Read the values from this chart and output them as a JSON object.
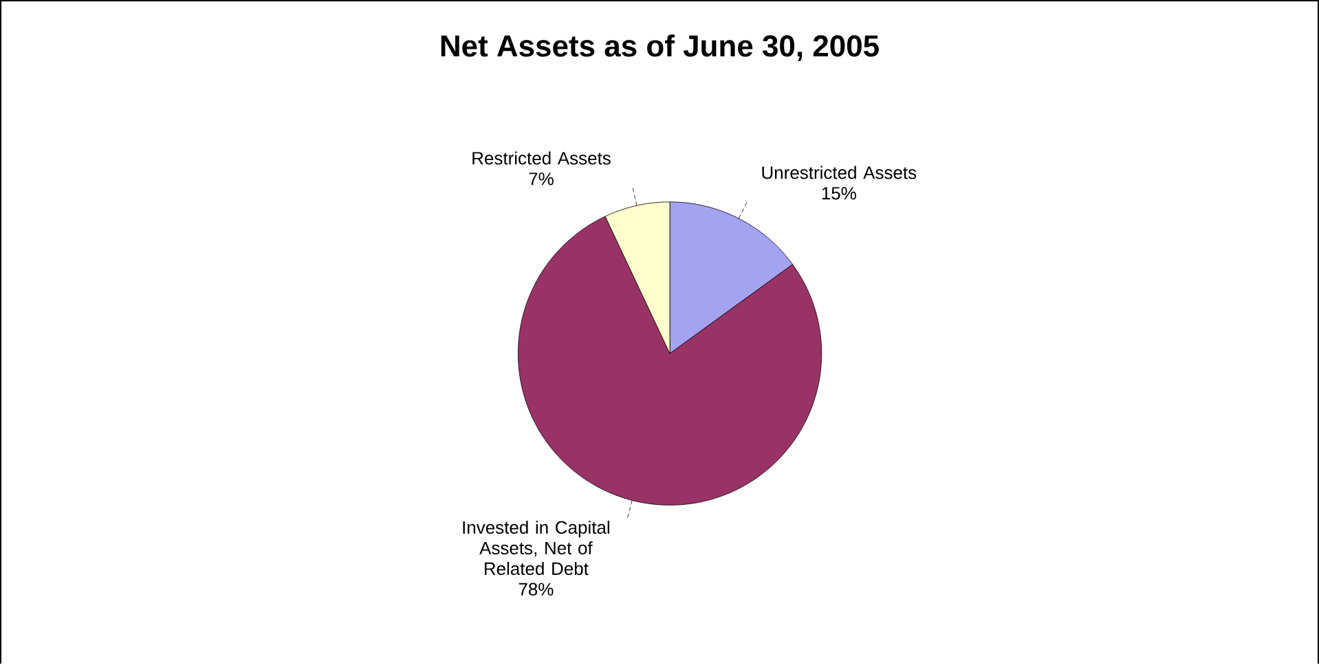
{
  "chart_data": {
    "type": "pie",
    "title": "Net Assets as of June 30, 2005",
    "categories": [
      "Unrestricted Assets",
      "Invested in Capital Assets, Net of Related Debt",
      "Restricted Assets"
    ],
    "values": [
      15,
      78,
      7
    ],
    "colors": [
      "#a3a3f2",
      "#993366",
      "#ffffcc"
    ],
    "value_labels": [
      "15%",
      "78%",
      "7%"
    ]
  }
}
